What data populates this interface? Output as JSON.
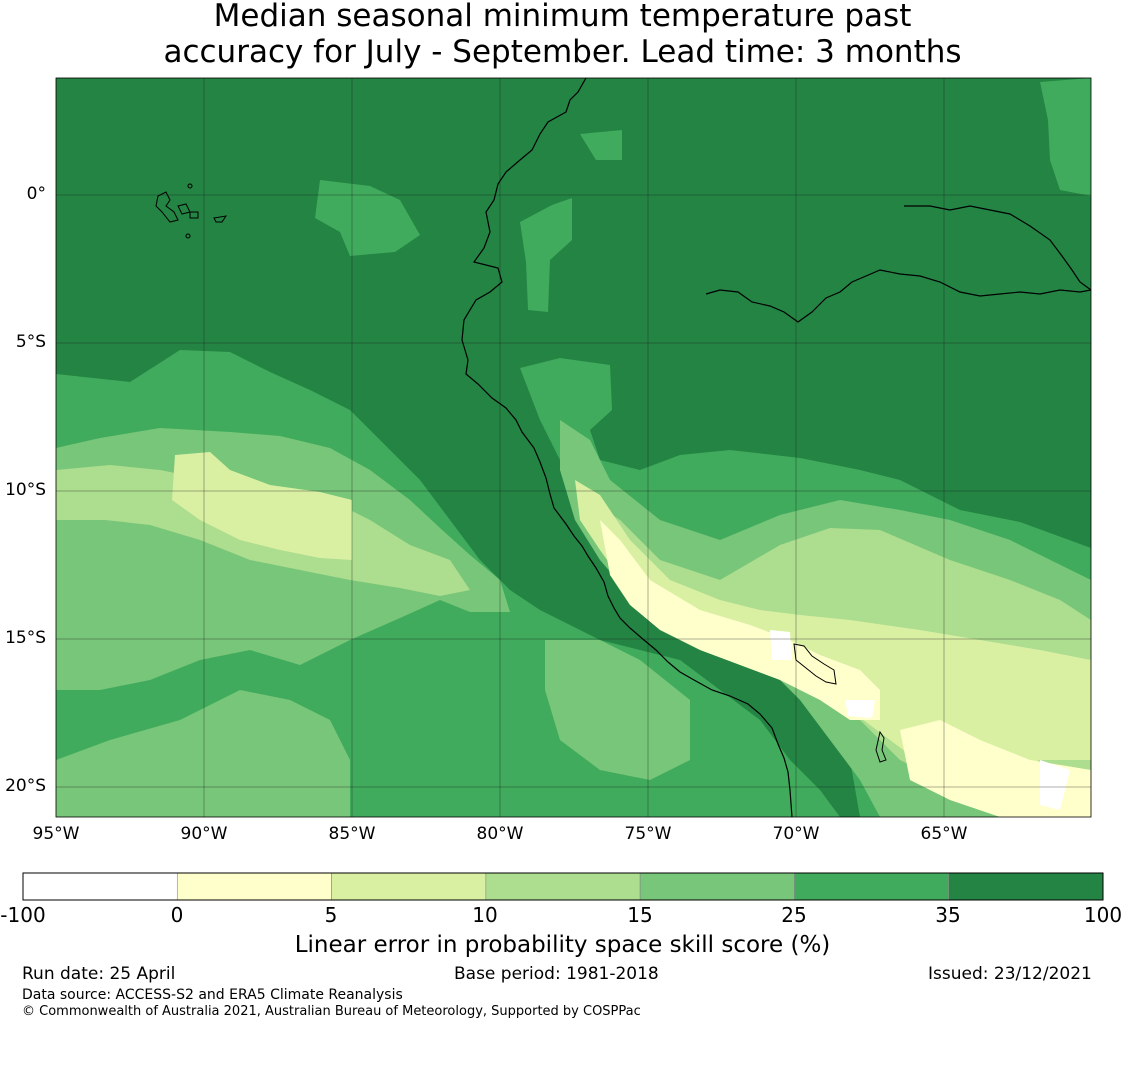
{
  "title": {
    "line1": "Median seasonal minimum temperature past",
    "line2": "accuracy for July - September. Lead time: 3 months"
  },
  "map": {
    "lat_labels": [
      "0°",
      "5°S",
      "10°S",
      "15°S",
      "20°S"
    ],
    "lon_labels": [
      "95°W",
      "90°W",
      "85°W",
      "80°W",
      "75°W",
      "70°W",
      "65°W"
    ]
  },
  "colorbar": {
    "title": "Linear error in probability space skill score (%)",
    "tick_labels": [
      "-100",
      "0",
      "5",
      "10",
      "15",
      "25",
      "35",
      "100"
    ],
    "bins": [
      {
        "from": -100,
        "to": 0,
        "color": "#ffffff"
      },
      {
        "from": 0,
        "to": 5,
        "color": "#ffffcc"
      },
      {
        "from": 5,
        "to": 10,
        "color": "#d9f0a3"
      },
      {
        "from": 10,
        "to": 15,
        "color": "#addd8e"
      },
      {
        "from": 15,
        "to": 25,
        "color": "#78c679"
      },
      {
        "from": 25,
        "to": 35,
        "color": "#41ab5d"
      },
      {
        "from": 35,
        "to": 100,
        "color": "#238443"
      }
    ]
  },
  "footer": {
    "run_date": "Run date: 25 April",
    "base_period": "Base period: 1981-2018",
    "issued": "Issued: 23/12/2021",
    "data_source": "Data source: ACCESS-S2 and ERA5 Climate Reanalysis",
    "copyright": "© Commonwealth of Australia 2021, Australian Bureau of Meteorology, Supported by COSPPac"
  }
}
